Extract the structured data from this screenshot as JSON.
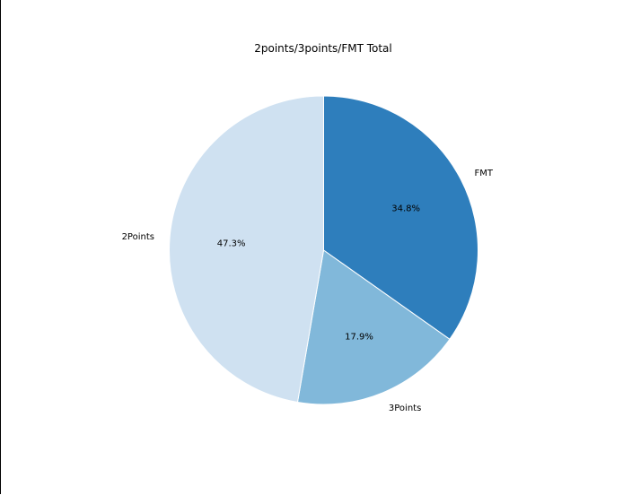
{
  "chart_data": {
    "type": "pie",
    "title": "2points/3points/FMT Total",
    "slices": [
      {
        "label": "FMT",
        "value": 34.8,
        "pct_label": "34.8%",
        "color": "#2e7ebc"
      },
      {
        "label": "3Points",
        "value": 17.9,
        "pct_label": "17.9%",
        "color": "#81b8da"
      },
      {
        "label": "2Points",
        "value": 47.3,
        "pct_label": "47.3%",
        "color": "#cfe1f1"
      }
    ],
    "start_angle_deg": 90,
    "direction": "clockwise",
    "edge_color": "#ffffff"
  }
}
